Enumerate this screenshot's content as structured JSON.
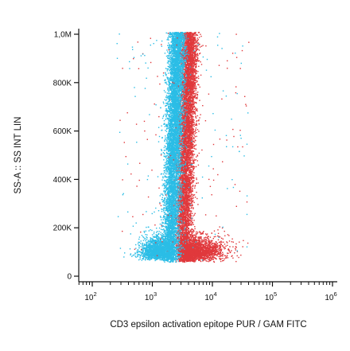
{
  "chart_data": {
    "type": "scatter",
    "xlabel": "CD3 epsilon activation epitope PUR / GAM FITC",
    "ylabel": "SS-A :: SS INT LIN",
    "x_scale": "log",
    "xlim": [
      50,
      1000000
    ],
    "ylim": [
      0,
      1050000
    ],
    "x_ticks": [
      {
        "value": 100,
        "base": "10",
        "exp": "2"
      },
      {
        "value": 1000,
        "base": "10",
        "exp": "3"
      },
      {
        "value": 10000,
        "base": "10",
        "exp": "4"
      },
      {
        "value": 100000,
        "base": "10",
        "exp": "5"
      },
      {
        "value": 1000000,
        "base": "10",
        "exp": "6"
      }
    ],
    "y_ticks": [
      {
        "value": 0,
        "label": "0"
      },
      {
        "value": 200000,
        "label": "200K"
      },
      {
        "value": 400000,
        "label": "400K"
      },
      {
        "value": 600000,
        "label": "600K"
      },
      {
        "value": 800000,
        "label": "800K"
      },
      {
        "value": 1000000,
        "label": "1,0M"
      }
    ],
    "grid": false,
    "series": [
      {
        "color": "#e0393c",
        "population": "main",
        "approx_points": 6500,
        "x_median": 3600,
        "y_range": [
          50000,
          1000000
        ]
      },
      {
        "color": "#e0393c",
        "population": "low-ss tail",
        "approx_points": 2500,
        "x_median": 7000,
        "y_range": [
          50000,
          170000
        ]
      },
      {
        "color": "#2bbde6",
        "population": "main",
        "approx_points": 6500,
        "x_median": 2400,
        "y_range": [
          50000,
          1000000
        ]
      },
      {
        "color": "#2bbde6",
        "population": "low-ss cluster",
        "approx_points": 1800,
        "x_median": 1000,
        "y_range": [
          50000,
          160000
        ]
      }
    ]
  }
}
